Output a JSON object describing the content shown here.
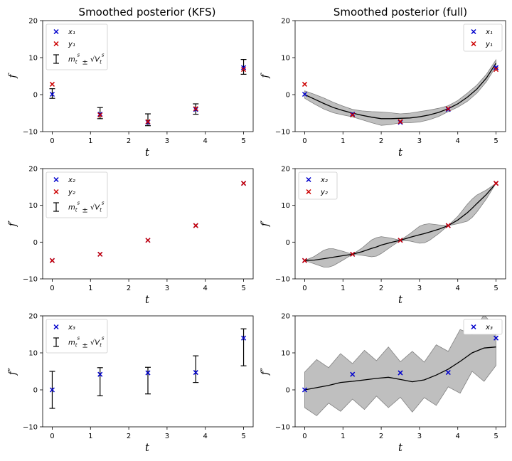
{
  "colors": {
    "x_marker": "#0000cc",
    "y_marker": "#cc0000",
    "band": "#808080",
    "line": "#000000"
  },
  "chart_data": [
    {
      "id": "p11",
      "type": "scatter",
      "title": "Smoothed posterior (KFS)",
      "xlabel": "t",
      "ylabel": "f",
      "xlim": [
        -0.25,
        5.25
      ],
      "ylim": [
        -10,
        20
      ],
      "xticks": [
        0,
        1,
        2,
        3,
        4,
        5
      ],
      "yticks": [
        -10,
        0,
        10,
        20
      ],
      "legend": "top-left",
      "x": [
        0,
        1.25,
        2.5,
        3.75,
        5
      ],
      "observations": {
        "name": "y₁",
        "values": [
          2.8,
          -5.5,
          -7.3,
          -3.8,
          6.8
        ]
      },
      "states": {
        "name": "x₁",
        "values": [
          0.1,
          -5.3,
          -7.5,
          -4.0,
          7.3
        ]
      },
      "errorbars": {
        "name": "m_t^s ± √V_t^s",
        "mean": [
          0.3,
          -5.0,
          -6.8,
          -3.9,
          7.5
        ],
        "err": [
          1.3,
          1.5,
          1.6,
          1.4,
          2.0
        ]
      }
    },
    {
      "id": "p12",
      "type": "line",
      "title": "Smoothed posterior (full)",
      "xlabel": "t",
      "ylabel": "f",
      "xlim": [
        -0.25,
        5.25
      ],
      "ylim": [
        -10,
        20
      ],
      "xticks": [
        0,
        1,
        2,
        3,
        4,
        5
      ],
      "yticks": [
        -10,
        0,
        10,
        20
      ],
      "legend": "top-right",
      "x": [
        0,
        1.25,
        2.5,
        3.75,
        5
      ],
      "states": {
        "name": "x₁",
        "values": [
          0.1,
          -5.3,
          -7.5,
          -4.0,
          7.3
        ]
      },
      "observations": {
        "name": "y₁",
        "values": [
          2.8,
          -5.5,
          -7.3,
          -3.8,
          6.8
        ]
      },
      "curve": {
        "x": [
          0,
          0.25,
          0.5,
          0.75,
          1,
          1.25,
          1.5,
          1.75,
          2,
          2.25,
          2.5,
          2.75,
          3,
          3.25,
          3.5,
          3.75,
          4,
          4.25,
          4.5,
          4.75,
          5
        ],
        "mean": [
          0,
          -1.2,
          -2.4,
          -3.5,
          -4.3,
          -5.0,
          -5.6,
          -6.1,
          -6.5,
          -6.5,
          -6.4,
          -6.3,
          -6.0,
          -5.5,
          -4.8,
          -3.8,
          -2.5,
          -0.7,
          1.5,
          4.5,
          8.5
        ],
        "std": [
          1.0,
          1.3,
          1.5,
          1.4,
          1.2,
          1.0,
          1.2,
          1.5,
          1.8,
          1.6,
          1.2,
          1.3,
          1.4,
          1.3,
          1.1,
          0.8,
          0.9,
          1.1,
          1.1,
          1.0,
          0.9
        ]
      }
    },
    {
      "id": "p21",
      "type": "scatter",
      "title": "",
      "xlabel": "t",
      "ylabel": "f′",
      "xlim": [
        -0.25,
        5.25
      ],
      "ylim": [
        -10,
        20
      ],
      "xticks": [
        0,
        1,
        2,
        3,
        4,
        5
      ],
      "yticks": [
        -10,
        0,
        10,
        20
      ],
      "legend": "top-left",
      "x": [
        0,
        1.25,
        2.5,
        3.75,
        5
      ],
      "states": {
        "name": "x₂",
        "values": [
          -5.0,
          -3.3,
          0.5,
          4.5,
          16.0
        ]
      },
      "observations": {
        "name": "y₂",
        "values": [
          -5.0,
          -3.3,
          0.5,
          4.5,
          16.0
        ]
      },
      "errorbars": {
        "name": "m_t^s ± √V_t^s",
        "mean": [
          -5.0,
          -3.3,
          0.5,
          4.5,
          16.0
        ],
        "err": [
          0.0,
          0.0,
          0.0,
          0.0,
          0.0
        ]
      }
    },
    {
      "id": "p22",
      "type": "line",
      "title": "",
      "xlabel": "t",
      "ylabel": "f′",
      "xlim": [
        -0.25,
        5.25
      ],
      "ylim": [
        -10,
        20
      ],
      "xticks": [
        0,
        1,
        2,
        3,
        4,
        5
      ],
      "yticks": [
        -10,
        0,
        10,
        20
      ],
      "legend": "top-left",
      "x": [
        0,
        1.25,
        2.5,
        3.75,
        5
      ],
      "states": {
        "name": "x₂",
        "values": [
          -5.0,
          -3.3,
          0.5,
          4.5,
          16.0
        ]
      },
      "observations": {
        "name": "y₂",
        "values": [
          -5.0,
          -3.3,
          0.5,
          4.5,
          16.0
        ]
      },
      "curve": {
        "x": [
          0,
          0.25,
          0.5,
          0.625,
          0.75,
          1,
          1.25,
          1.5,
          1.75,
          1.875,
          2,
          2.25,
          2.5,
          2.75,
          3,
          3.125,
          3.25,
          3.5,
          3.75,
          4,
          4.25,
          4.375,
          4.5,
          4.75,
          5
        ],
        "mean": [
          -5.0,
          -4.9,
          -4.5,
          -4.3,
          -4.1,
          -3.7,
          -3.3,
          -2.6,
          -1.7,
          -1.3,
          -0.8,
          -0.1,
          0.5,
          1.3,
          2.0,
          2.3,
          2.7,
          3.5,
          4.5,
          6.0,
          8.0,
          9.2,
          10.5,
          13.0,
          16.0
        ],
        "std": [
          0,
          1.0,
          2.3,
          2.5,
          2.3,
          1.2,
          0,
          1.0,
          2.3,
          2.5,
          2.3,
          1.2,
          0,
          1.0,
          2.3,
          2.5,
          2.3,
          1.2,
          0,
          1.0,
          2.3,
          2.5,
          2.3,
          1.2,
          0
        ]
      }
    },
    {
      "id": "p31",
      "type": "scatter",
      "title": "",
      "xlabel": "t",
      "ylabel": "f″",
      "xlim": [
        -0.25,
        5.25
      ],
      "ylim": [
        -10,
        20
      ],
      "xticks": [
        0,
        1,
        2,
        3,
        4,
        5
      ],
      "yticks": [
        -10,
        0,
        10,
        20
      ],
      "legend": "top-left",
      "x": [
        0,
        1.25,
        2.5,
        3.75,
        5
      ],
      "states": {
        "name": "x₃",
        "values": [
          0.0,
          4.2,
          4.6,
          4.7,
          14.0
        ]
      },
      "errorbars": {
        "name": "m_t^s ± √V_t^s",
        "mean": [
          0.0,
          2.2,
          2.5,
          5.6,
          11.5
        ],
        "err": [
          5.0,
          3.8,
          3.6,
          3.6,
          5.0
        ]
      }
    },
    {
      "id": "p32",
      "type": "line",
      "title": "",
      "xlabel": "t",
      "ylabel": "f″",
      "xlim": [
        -0.25,
        5.25
      ],
      "ylim": [
        -10,
        20
      ],
      "xticks": [
        0,
        1,
        2,
        3,
        4,
        5
      ],
      "yticks": [
        -10,
        0,
        10,
        20
      ],
      "legend": "top-right",
      "x": [
        0,
        1.25,
        2.5,
        3.75,
        5
      ],
      "states": {
        "name": "x₃",
        "values": [
          0.0,
          4.2,
          4.6,
          4.7,
          14.0
        ]
      },
      "curve": {
        "x": [
          0,
          0.3125,
          0.625,
          0.9375,
          1.25,
          1.5625,
          1.875,
          2.1875,
          2.5,
          2.8125,
          3.125,
          3.4375,
          3.75,
          4.0625,
          4.375,
          4.6875,
          5
        ],
        "mean": [
          0,
          0.6,
          1.2,
          2.0,
          2.3,
          2.7,
          3.1,
          3.4,
          2.8,
          2.2,
          2.7,
          4.0,
          5.6,
          7.7,
          10.0,
          11.3,
          11.6
        ],
        "std": [
          4.8,
          7.6,
          4.8,
          7.8,
          4.8,
          8.0,
          4.8,
          8.2,
          4.8,
          8.2,
          4.8,
          8.2,
          4.8,
          8.6,
          5.0,
          9.0,
          5.0
        ]
      }
    }
  ]
}
